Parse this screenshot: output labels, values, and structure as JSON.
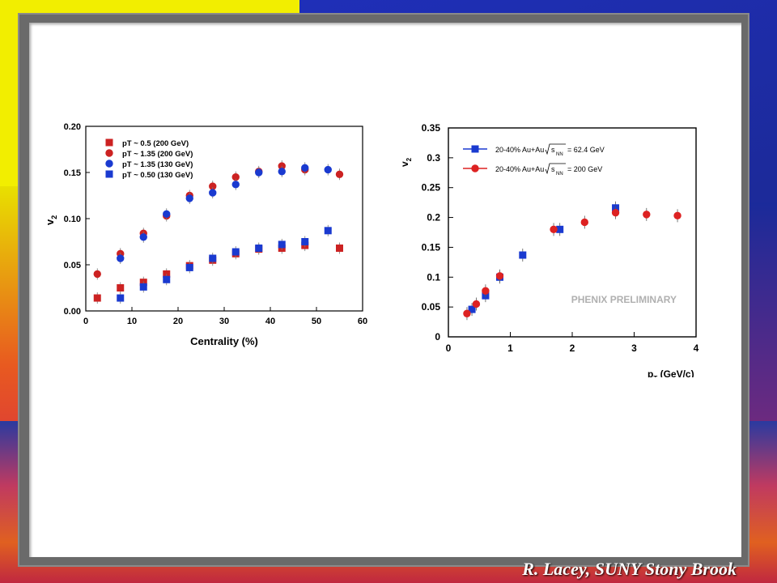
{
  "footer": "R. Lacey, SUNY  Stony Brook",
  "chart_data": [
    {
      "type": "scatter",
      "xlabel": "Centrality (%)",
      "ylabel": "v",
      "ylabel_sub": "2",
      "xlim": [
        0,
        60
      ],
      "ylim": [
        0,
        0.2
      ],
      "xticks": [
        "0",
        "10",
        "20",
        "30",
        "40",
        "50",
        "60"
      ],
      "yticks": [
        "0.00",
        "0.05",
        "0.10",
        "0.15",
        "0.20"
      ],
      "series": [
        {
          "name": "pT ~ 0.5 (200 GeV)",
          "marker": "square",
          "color": "#cc2222",
          "points": [
            [
              2.5,
              0.014
            ],
            [
              7.5,
              0.025
            ],
            [
              12.5,
              0.031
            ],
            [
              17.5,
              0.04
            ],
            [
              22.5,
              0.049
            ],
            [
              27.5,
              0.055
            ],
            [
              32.5,
              0.062
            ],
            [
              37.5,
              0.067
            ],
            [
              42.5,
              0.068
            ],
            [
              47.5,
              0.071
            ],
            [
              55,
              0.068
            ]
          ]
        },
        {
          "name": "pT ~ 1.35 (200 GeV)",
          "marker": "circle",
          "color": "#cc2222",
          "points": [
            [
              2.5,
              0.04
            ],
            [
              7.5,
              0.062
            ],
            [
              12.5,
              0.084
            ],
            [
              17.5,
              0.103
            ],
            [
              22.5,
              0.125
            ],
            [
              27.5,
              0.135
            ],
            [
              32.5,
              0.145
            ],
            [
              37.5,
              0.151
            ],
            [
              42.5,
              0.157
            ],
            [
              47.5,
              0.153
            ],
            [
              55,
              0.148
            ]
          ]
        },
        {
          "name": "pT  ~ 1.35 (130 GeV)",
          "marker": "circle",
          "color": "#1a3ad0",
          "points": [
            [
              7.5,
              0.057
            ],
            [
              12.5,
              0.08
            ],
            [
              17.5,
              0.105
            ],
            [
              22.5,
              0.122
            ],
            [
              27.5,
              0.128
            ],
            [
              32.5,
              0.137
            ],
            [
              37.5,
              0.15
            ],
            [
              42.5,
              0.151
            ],
            [
              47.5,
              0.155
            ],
            [
              52.5,
              0.153
            ]
          ]
        },
        {
          "name": "pT  ~ 0.50 (130 GeV)",
          "marker": "square",
          "color": "#1a3ad0",
          "points": [
            [
              7.5,
              0.014
            ],
            [
              12.5,
              0.026
            ],
            [
              17.5,
              0.034
            ],
            [
              22.5,
              0.047
            ],
            [
              27.5,
              0.057
            ],
            [
              32.5,
              0.064
            ],
            [
              37.5,
              0.068
            ],
            [
              42.5,
              0.072
            ],
            [
              47.5,
              0.075
            ],
            [
              52.5,
              0.087
            ]
          ]
        }
      ],
      "legend_placement": "top-left"
    },
    {
      "type": "scatter",
      "xlabel": "p",
      "xlabel_sub": "T",
      "xlabel_suffix": " (GeV/c)",
      "ylabel": "v",
      "ylabel_sub": "2",
      "xlim": [
        0,
        4
      ],
      "ylim": [
        0,
        0.35
      ],
      "xticks": [
        "0",
        "1",
        "2",
        "3",
        "4"
      ],
      "yticks": [
        "0",
        "0.05",
        "0.1",
        "0.15",
        "0.2",
        "0.25",
        "0.3",
        "0.35"
      ],
      "annotation": "PHENIX PRELIMINARY",
      "series": [
        {
          "name": "20-40% Au+Au",
          "energy": "= 62.4 GeV",
          "marker": "square",
          "color": "#1a3ad0",
          "points": [
            [
              0.38,
              0.046
            ],
            [
              0.6,
              0.069
            ],
            [
              0.83,
              0.1
            ],
            [
              1.2,
              0.137
            ],
            [
              1.8,
              0.18
            ],
            [
              2.7,
              0.216
            ]
          ]
        },
        {
          "name": "20-40% Au+Au",
          "energy": "= 200 GeV",
          "marker": "circle",
          "color": "#dd2222",
          "points": [
            [
              0.3,
              0.039
            ],
            [
              0.45,
              0.055
            ],
            [
              0.6,
              0.077
            ],
            [
              0.83,
              0.102
            ],
            [
              1.7,
              0.18
            ],
            [
              2.2,
              0.192
            ],
            [
              2.7,
              0.208
            ],
            [
              3.2,
              0.205
            ],
            [
              3.7,
              0.203
            ]
          ]
        }
      ],
      "legend_placement": "top-left"
    }
  ]
}
